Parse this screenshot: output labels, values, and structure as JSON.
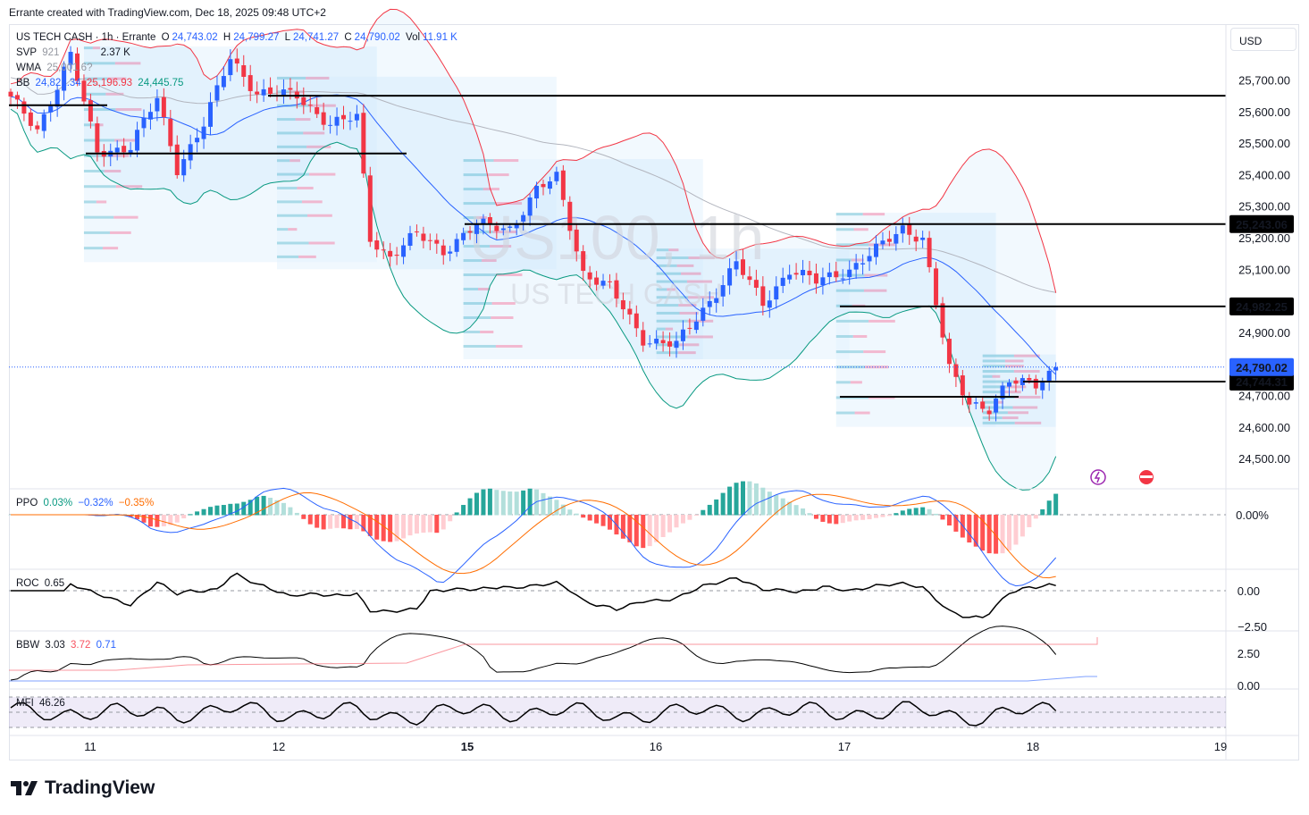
{
  "caption": "Errante created with TradingView.com, Dec 18, 2025 09:48 UTC+2",
  "header": {
    "symbol": "US TECH CASH · 1h · Errante",
    "o_label": "O",
    "o_value": "24,743.02",
    "h_label": "H",
    "h_value": "24,799.27",
    "l_label": "L",
    "l_value": "24,741.27",
    "c_label": "C",
    "c_value": "24,790.02",
    "vol_label": "Vol",
    "vol_value": "11.91 K"
  },
  "legends": {
    "svp": {
      "name": "SVP",
      "v1": "921",
      "v2": "2.37 K"
    },
    "wma": {
      "name": "WMA",
      "v1": "25,001.6?"
    },
    "bb": {
      "name": "BB",
      "v1": "24,821.34",
      "v2": "25,196.93",
      "v3": "24,445.75"
    },
    "ppo": {
      "name": "PPO",
      "v1": "0.03%",
      "v2": "−0.32%",
      "v3": "−0.35%"
    },
    "roc": {
      "name": "ROC",
      "v1": "0.65"
    },
    "bbw": {
      "name": "BBW",
      "v1": "3.03",
      "v2": "3.72",
      "v3": "0.71"
    },
    "mfi": {
      "name": "MFI",
      "v1": "46.26"
    }
  },
  "currency": "USD",
  "watermark": {
    "big": "US100, 1h",
    "small": "US TECH CASH"
  },
  "footer": {
    "logo_text": "TradingView"
  },
  "colors": {
    "up": "#2962ff",
    "down": "#f23645",
    "bb_upper": "#f23645",
    "bb_basis": "#2962ff",
    "bb_lower": "#089981",
    "wma": "#b2b5be",
    "ppo_line": "#2962ff",
    "ppo_signal": "#ff6d00",
    "roc": "#000000",
    "bbw": "#000000",
    "mfi": "#000000",
    "mfi_band": "#7e57c2"
  },
  "chart_data": [
    {
      "type": "candlestick",
      "title": "US TECH CASH · 1h · Errante",
      "x_tick_labels": [
        "11",
        "12",
        "15",
        "16",
        "17",
        "18",
        "19"
      ],
      "y_tick_labels": [
        "25,700.00",
        "25,600.00",
        "25,500.00",
        "25,400.00",
        "25,300.00",
        "25,200.00",
        "25,100.00",
        "25,000.00",
        "24,900.00",
        "24,800.00",
        "24,700.00",
        "24,600.00",
        "24,500.00"
      ],
      "y_ticks": [
        25700,
        25600,
        25500,
        25400,
        25300,
        25200,
        25100,
        25000,
        24900,
        24800,
        24700,
        24600,
        24500
      ],
      "ylim": [
        24410,
        25840
      ],
      "horizontal_levels": [
        {
          "value": 25650,
          "label": ""
        },
        {
          "value": 25243.06,
          "label": "25,243.06"
        },
        {
          "value": 24982.25,
          "label": "24,982.25"
        },
        {
          "value": 24744.31,
          "label": "24,744.31"
        },
        {
          "value": 25620,
          "label": ""
        },
        {
          "value": 25467,
          "label": ""
        },
        {
          "value": 24696,
          "label": ""
        }
      ],
      "last_price": {
        "value": 24790.02,
        "label": "24,790.02"
      },
      "anchors": [
        {
          "t": 0,
          "p": 25640
        },
        {
          "t": 4,
          "p": 25540
        },
        {
          "t": 9,
          "p": 25780
        },
        {
          "t": 13,
          "p": 25470
        },
        {
          "t": 18,
          "p": 25490
        },
        {
          "t": 22,
          "p": 25640
        },
        {
          "t": 25,
          "p": 25420
        },
        {
          "t": 29,
          "p": 25560
        },
        {
          "t": 33,
          "p": 25770
        },
        {
          "t": 37,
          "p": 25660
        },
        {
          "t": 43,
          "p": 25650
        },
        {
          "t": 48,
          "p": 25560
        },
        {
          "t": 52,
          "p": 25580
        },
        {
          "t": 54,
          "p": 25200
        },
        {
          "t": 57,
          "p": 25140
        },
        {
          "t": 61,
          "p": 25210
        },
        {
          "t": 65,
          "p": 25160
        },
        {
          "t": 70,
          "p": 25240
        },
        {
          "t": 75,
          "p": 25230
        },
        {
          "t": 79,
          "p": 25350
        },
        {
          "t": 82,
          "p": 25390
        },
        {
          "t": 86,
          "p": 25090
        },
        {
          "t": 90,
          "p": 25040
        },
        {
          "t": 95,
          "p": 24880
        },
        {
          "t": 100,
          "p": 24860
        },
        {
          "t": 105,
          "p": 25000
        },
        {
          "t": 109,
          "p": 25120
        },
        {
          "t": 113,
          "p": 24990
        },
        {
          "t": 117,
          "p": 25100
        },
        {
          "t": 121,
          "p": 25060
        },
        {
          "t": 126,
          "p": 25100
        },
        {
          "t": 130,
          "p": 25160
        },
        {
          "t": 134,
          "p": 25230
        },
        {
          "t": 137,
          "p": 25200
        },
        {
          "t": 139,
          "p": 24990
        },
        {
          "t": 141,
          "p": 24780
        },
        {
          "t": 144,
          "p": 24680
        },
        {
          "t": 147,
          "p": 24660
        },
        {
          "t": 150,
          "p": 24740
        },
        {
          "t": 154,
          "p": 24740
        },
        {
          "t": 157,
          "p": 24790.02
        }
      ]
    },
    {
      "type": "line",
      "title": "PPO",
      "y_tick_labels": [
        "0.00%"
      ],
      "series": [
        {
          "name": "PPO"
        },
        {
          "name": "Signal"
        },
        {
          "name": "Histogram"
        }
      ]
    },
    {
      "type": "line",
      "title": "ROC",
      "y_tick_labels": [
        "0.00",
        "−2.50"
      ],
      "series": [
        {
          "name": "ROC"
        }
      ]
    },
    {
      "type": "line",
      "title": "BBW",
      "y_tick_labels": [
        "2.50",
        "0.00"
      ],
      "series": [
        {
          "name": "BBW"
        }
      ]
    },
    {
      "type": "line",
      "title": "MFI",
      "series": [
        {
          "name": "MFI"
        }
      ]
    }
  ]
}
